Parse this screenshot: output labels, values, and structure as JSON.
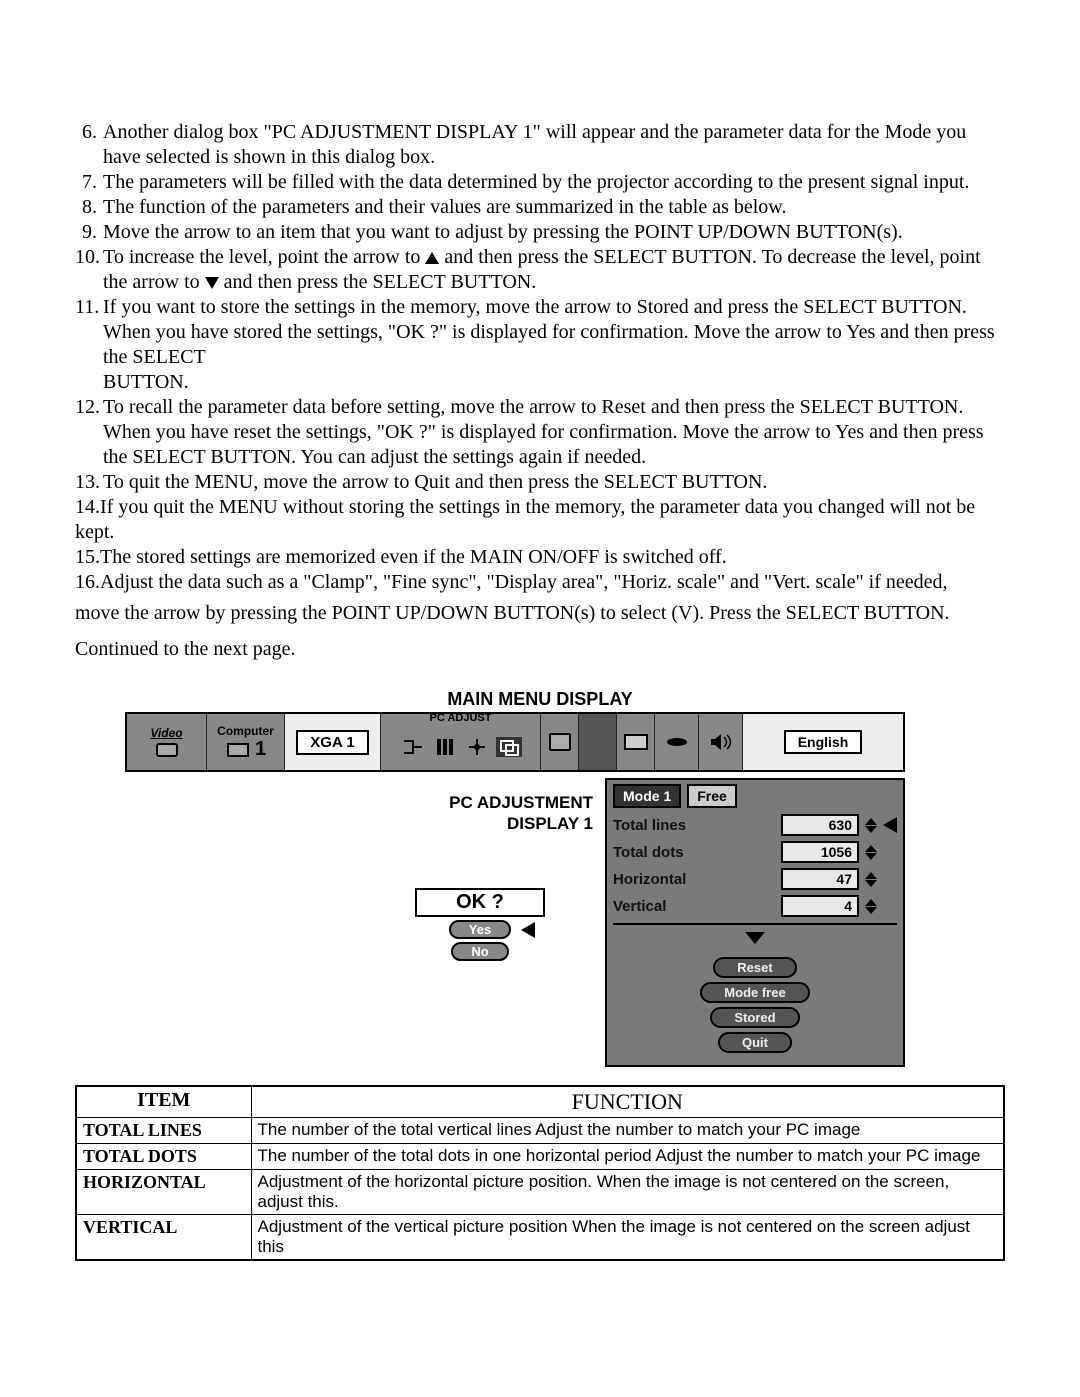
{
  "instructions": [
    {
      "n": "6.",
      "t": "Another dialog box \"PC ADJUSTMENT DISPLAY 1\" will appear and the parameter data for the Mode you have selected is shown in this dialog box."
    },
    {
      "n": "7.",
      "t": "The parameters will be filled with the data determined by the projector according to the present signal input."
    },
    {
      "n": "8.",
      "t": "The function of the parameters and their values are summarized in the table as below."
    },
    {
      "n": "9.",
      "t": "Move the arrow to an item that you want to adjust by pressing the POINT UP/DOWN BUTTON(s)."
    },
    {
      "n": "10.",
      "t": "To increase the level, point the arrow to ▲ and then press the SELECT BUTTON. To decrease the level, point the arrow to ▼ and then press the SELECT BUTTON."
    },
    {
      "n": "11.",
      "t": "If you want to store the settings in the memory, move the arrow to Stored and press the SELECT BUTTON. When you have stored the settings, \"OK ?\" is displayed for confirmation. Move the arrow to Yes and then press the SELECT"
    },
    {
      "n": "",
      "t": "BUTTON."
    },
    {
      "n": "12.",
      "t": "To recall the parameter data before setting, move the arrow to Reset and then press the SELECT BUTTON. When you have reset the settings, \"OK ?\" is displayed for confirmation. Move the arrow to Yes and then press the SELECT BUTTON. You can adjust the settings again if needed."
    },
    {
      "n": "13.",
      "t": "To quit the MENU, move the arrow to Quit and then press the SELECT BUTTON."
    },
    {
      "n": "14.",
      "t": "If you quit the MENU without storing the settings in the memory, the parameter data you changed will not be kept.",
      "flat": true
    },
    {
      "n": "15.",
      "t": "The stored settings are memorized even if the MAIN ON/OFF is switched off.",
      "flat": true
    },
    {
      "n": "16.",
      "t": "Adjust the data such as a \"Clamp\", \"Fine sync\", \"Display area\", \"Horiz. scale\" and \"Vert. scale\" if needed,",
      "flat": true
    },
    {
      "n": "",
      "t": "move the arrow by pressing the POINT UP/DOWN BUTTON(s) to select (V). Press the SELECT BUTTON.",
      "flat": true,
      "gap": true
    }
  ],
  "continued": "Continued to the next page.",
  "caption": "MAIN MENU DISPLAY",
  "menu_bar": {
    "video": "Video",
    "computer": "Computer",
    "comp_num": "1",
    "mode_pill": "XGA 1",
    "pcadjust": "PC ADJUST",
    "english": "English"
  },
  "osd_label": {
    "line1": "PC ADJUSTMENT",
    "line2": "DISPLAY 1"
  },
  "panel": {
    "head1": "Mode 1",
    "head2": "Free",
    "rows": [
      {
        "label": "Total lines",
        "value": "630",
        "arrow": true
      },
      {
        "label": "Total dots",
        "value": "1056"
      },
      {
        "label": "Horizontal",
        "value": "47"
      },
      {
        "label": "Vertical",
        "value": "4"
      }
    ],
    "buttons": [
      "Reset",
      "Mode free",
      "Stored",
      "Quit"
    ]
  },
  "ok": {
    "title": "OK ?",
    "yes": "Yes",
    "no": "No"
  },
  "fn_header": {
    "item": "ITEM",
    "func": "FUNCTION"
  },
  "fn_rows": [
    {
      "item": "TOTAL LINES",
      "func": "The number of the total vertical lines Adjust the number to match your PC image"
    },
    {
      "item": "TOTAL DOTS",
      "func": "The number of the total dots in one horizontal period Adjust the number to match your PC image"
    },
    {
      "item": "HORIZONTAL",
      "func": "Adjustment of the horizontal picture position. When the image is not centered on the screen, adjust this."
    },
    {
      "item": "VERTICAL",
      "func": "Adjustment of the vertical picture position When the image is not centered on the screen adjust this"
    }
  ]
}
